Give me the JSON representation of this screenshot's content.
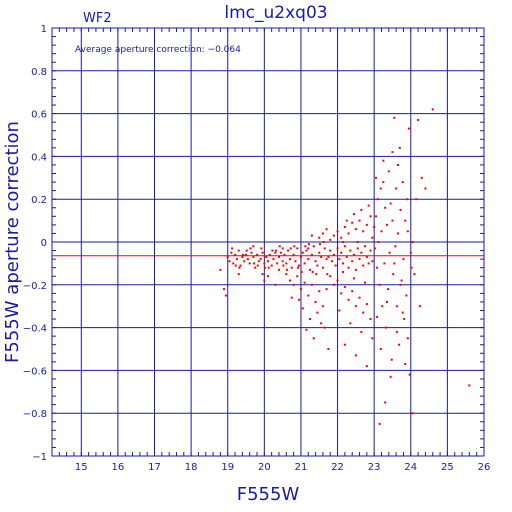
{
  "chart_data": {
    "type": "scatter",
    "title": "lmc_u2xq03",
    "chip_label": "WF2",
    "annotation": "Average aperture correction: −0.064",
    "xlabel": "F555W",
    "ylabel": "F555W aperture correction",
    "xlim": [
      14.2,
      26.0
    ],
    "ylim": [
      -1.0,
      1.0
    ],
    "x_ticks": [
      15,
      16,
      17,
      18,
      19,
      20,
      21,
      22,
      23,
      24,
      25,
      26
    ],
    "x_tick_labels": [
      "15",
      "16",
      "17",
      "18",
      "19",
      "20",
      "21",
      "22",
      "23",
      "24",
      "25",
      "26"
    ],
    "y_ticks": [
      1,
      0.8,
      0.6,
      0.4,
      0.2,
      0,
      -0.2,
      -0.4,
      -0.6,
      -0.8,
      -1
    ],
    "y_tick_labels": [
      "1",
      "0.8",
      "0.6",
      "0.4",
      "0.2",
      "0",
      "−0.2",
      "−0.4",
      "−0.6",
      "−0.8",
      "−1"
    ],
    "grid": true,
    "reference_line": {
      "y": -0.064
    },
    "colors": {
      "axes": "#1a1aa8",
      "points": "#ff0000",
      "reference_line": "#ff0000"
    },
    "points": [
      [
        18.8,
        -0.13
      ],
      [
        18.9,
        -0.22
      ],
      [
        18.95,
        -0.25
      ],
      [
        19.0,
        -0.07
      ],
      [
        19.05,
        -0.09
      ],
      [
        19.1,
        -0.05
      ],
      [
        19.15,
        -0.1
      ],
      [
        19.2,
        -0.06
      ],
      [
        19.25,
        -0.08
      ],
      [
        19.3,
        -0.04
      ],
      [
        19.35,
        -0.11
      ],
      [
        19.4,
        -0.07
      ],
      [
        19.45,
        -0.09
      ],
      [
        19.5,
        -0.06
      ],
      [
        19.55,
        -0.08
      ],
      [
        19.6,
        -0.1
      ],
      [
        19.65,
        -0.05
      ],
      [
        19.7,
        -0.07
      ],
      [
        19.75,
        -0.12
      ],
      [
        19.8,
        -0.06
      ],
      [
        19.85,
        -0.09
      ],
      [
        19.9,
        -0.08
      ],
      [
        19.95,
        -0.05
      ],
      [
        20.0,
        -0.1
      ],
      [
        20.05,
        -0.07
      ],
      [
        20.1,
        -0.09
      ],
      [
        20.15,
        -0.06
      ],
      [
        20.2,
        -0.11
      ],
      [
        20.25,
        -0.08
      ],
      [
        20.3,
        -0.05
      ],
      [
        20.35,
        -0.1
      ],
      [
        19.12,
        -0.03
      ],
      [
        19.32,
        -0.12
      ],
      [
        19.52,
        -0.04
      ],
      [
        19.72,
        -0.1
      ],
      [
        19.92,
        -0.03
      ],
      [
        20.12,
        -0.12
      ],
      [
        20.32,
        -0.04
      ],
      [
        19.22,
        -0.11
      ],
      [
        19.62,
        -0.03
      ],
      [
        20.02,
        -0.12
      ],
      [
        19.42,
        -0.06
      ],
      [
        19.82,
        -0.11
      ],
      [
        20.22,
        -0.04
      ],
      [
        20.0,
        -0.18
      ],
      [
        20.1,
        -0.16
      ],
      [
        20.3,
        -0.2
      ],
      [
        19.95,
        -0.15
      ],
      [
        20.4,
        -0.13
      ],
      [
        19.3,
        -0.15
      ],
      [
        19.7,
        -0.02
      ],
      [
        20.5,
        -0.03
      ],
      [
        20.4,
        -0.07
      ],
      [
        20.45,
        -0.05
      ],
      [
        20.5,
        -0.09
      ],
      [
        20.55,
        -0.06
      ],
      [
        20.6,
        -0.1
      ],
      [
        20.65,
        -0.04
      ],
      [
        20.7,
        -0.08
      ],
      [
        20.75,
        -0.12
      ],
      [
        20.8,
        -0.06
      ],
      [
        20.85,
        -0.09
      ],
      [
        20.9,
        -0.03
      ],
      [
        20.95,
        -0.11
      ],
      [
        21.0,
        -0.07
      ],
      [
        21.05,
        -0.05
      ],
      [
        21.1,
        -0.1
      ],
      [
        21.15,
        -0.04
      ],
      [
        21.2,
        -0.08
      ],
      [
        21.25,
        -0.13
      ],
      [
        21.3,
        -0.06
      ],
      [
        21.35,
        -0.02
      ],
      [
        21.4,
        -0.09
      ],
      [
        21.45,
        -0.11
      ],
      [
        21.5,
        -0.05
      ],
      [
        21.55,
        -0.07
      ],
      [
        21.6,
        -0.12
      ],
      [
        21.65,
        -0.03
      ],
      [
        21.7,
        -0.08
      ],
      [
        20.42,
        -0.02
      ],
      [
        20.62,
        -0.13
      ],
      [
        20.82,
        -0.02
      ],
      [
        21.02,
        -0.14
      ],
      [
        21.22,
        -0.01
      ],
      [
        21.42,
        -0.15
      ],
      [
        21.62,
        0.0
      ],
      [
        20.52,
        -0.11
      ],
      [
        20.72,
        -0.03
      ],
      [
        20.92,
        -0.12
      ],
      [
        21.12,
        -0.02
      ],
      [
        21.32,
        -0.14
      ],
      [
        21.52,
        -0.01
      ],
      [
        21.72,
        -0.15
      ],
      [
        20.6,
        -0.15
      ],
      [
        20.7,
        -0.18
      ],
      [
        20.8,
        -0.2
      ],
      [
        20.9,
        -0.16
      ],
      [
        21.0,
        -0.22
      ],
      [
        21.1,
        -0.19
      ],
      [
        21.2,
        -0.25
      ],
      [
        21.3,
        -0.2
      ],
      [
        21.4,
        -0.28
      ],
      [
        21.5,
        -0.23
      ],
      [
        21.6,
        -0.3
      ],
      [
        21.7,
        -0.22
      ],
      [
        21.05,
        -0.31
      ],
      [
        21.25,
        -0.36
      ],
      [
        21.45,
        -0.33
      ],
      [
        21.65,
        -0.4
      ],
      [
        20.75,
        -0.26
      ],
      [
        21.15,
        -0.41
      ],
      [
        21.35,
        -0.45
      ],
      [
        21.55,
        -0.38
      ],
      [
        21.75,
        -0.5
      ],
      [
        20.95,
        -0.27
      ],
      [
        21.2,
        -0.03
      ],
      [
        21.5,
        0.02
      ],
      [
        21.6,
        0.04
      ],
      [
        21.3,
        0.03
      ],
      [
        21.7,
        0.06
      ],
      [
        21.75,
        -0.07
      ],
      [
        21.8,
        -0.04
      ],
      [
        21.85,
        -0.09
      ],
      [
        21.9,
        -0.06
      ],
      [
        21.95,
        -0.11
      ],
      [
        22.0,
        -0.03
      ],
      [
        22.05,
        -0.08
      ],
      [
        22.1,
        -0.05
      ],
      [
        22.15,
        -0.1
      ],
      [
        22.2,
        -0.02
      ],
      [
        22.25,
        -0.07
      ],
      [
        22.3,
        -0.12
      ],
      [
        22.35,
        -0.04
      ],
      [
        22.4,
        -0.09
      ],
      [
        22.45,
        -0.06
      ],
      [
        22.5,
        -0.13
      ],
      [
        22.55,
        -0.03
      ],
      [
        22.6,
        -0.08
      ],
      [
        22.65,
        -0.05
      ],
      [
        22.7,
        -0.11
      ],
      [
        22.75,
        -0.02
      ],
      [
        22.8,
        -0.07
      ],
      [
        22.85,
        -0.1
      ],
      [
        22.9,
        -0.04
      ],
      [
        22.95,
        -0.09
      ],
      [
        21.8,
        0.01
      ],
      [
        21.9,
        0.03
      ],
      [
        22.0,
        0.05
      ],
      [
        22.1,
        0.02
      ],
      [
        22.2,
        0.07
      ],
      [
        22.3,
        0.04
      ],
      [
        22.4,
        0.09
      ],
      [
        22.5,
        0.06
      ],
      [
        22.6,
        0.1
      ],
      [
        22.7,
        0.05
      ],
      [
        22.8,
        0.08
      ],
      [
        22.9,
        0.12
      ],
      [
        22.25,
        0.1
      ],
      [
        22.45,
        0.13
      ],
      [
        22.65,
        0.15
      ],
      [
        22.85,
        0.17
      ],
      [
        22.95,
        0.02
      ],
      [
        22.55,
        0.0
      ],
      [
        22.15,
        0.0
      ],
      [
        21.8,
        -0.16
      ],
      [
        21.9,
        -0.2
      ],
      [
        22.0,
        -0.18
      ],
      [
        22.1,
        -0.24
      ],
      [
        22.2,
        -0.21
      ],
      [
        22.3,
        -0.27
      ],
      [
        22.4,
        -0.23
      ],
      [
        22.5,
        -0.3
      ],
      [
        22.6,
        -0.26
      ],
      [
        22.7,
        -0.33
      ],
      [
        22.8,
        -0.29
      ],
      [
        22.9,
        -0.36
      ],
      [
        22.05,
        -0.32
      ],
      [
        22.35,
        -0.38
      ],
      [
        22.65,
        -0.42
      ],
      [
        22.95,
        -0.45
      ],
      [
        22.2,
        -0.48
      ],
      [
        22.5,
        -0.53
      ],
      [
        22.8,
        -0.58
      ],
      [
        22.15,
        -0.14
      ],
      [
        22.45,
        -0.17
      ],
      [
        22.75,
        -0.19
      ],
      [
        23.0,
        0.07
      ],
      [
        23.02,
        -0.03
      ],
      [
        23.05,
        0.12
      ],
      [
        23.08,
        -0.12
      ],
      [
        23.1,
        0.2
      ],
      [
        23.12,
        0.0
      ],
      [
        23.15,
        -0.2
      ],
      [
        23.18,
        0.25
      ],
      [
        23.2,
        0.05
      ],
      [
        23.22,
        -0.3
      ],
      [
        23.25,
        0.28
      ],
      [
        23.28,
        -0.1
      ],
      [
        23.3,
        0.16
      ],
      [
        23.32,
        -0.4
      ],
      [
        23.35,
        0.08
      ],
      [
        23.38,
        -0.22
      ],
      [
        23.4,
        0.33
      ],
      [
        23.42,
        -0.05
      ],
      [
        23.45,
        0.18
      ],
      [
        23.48,
        -0.55
      ],
      [
        23.5,
        0.1
      ],
      [
        23.52,
        -0.15
      ],
      [
        23.55,
        0.58
      ],
      [
        23.58,
        -0.02
      ],
      [
        23.6,
        0.25
      ],
      [
        23.62,
        -0.3
      ],
      [
        23.65,
        0.04
      ],
      [
        23.68,
        -0.48
      ],
      [
        23.7,
        0.44
      ],
      [
        23.72,
        0.15
      ],
      [
        23.75,
        -0.18
      ],
      [
        23.78,
        0.28
      ],
      [
        23.8,
        -0.08
      ],
      [
        23.82,
        -0.36
      ],
      [
        23.85,
        0.1
      ],
      [
        23.88,
        -0.25
      ],
      [
        23.9,
        0.2
      ],
      [
        23.92,
        -0.45
      ],
      [
        23.95,
        0.53
      ],
      [
        23.97,
        -0.62
      ],
      [
        24.0,
        -0.05
      ],
      [
        24.02,
        -0.12
      ],
      [
        24.05,
        0.0
      ],
      [
        24.1,
        -0.15
      ],
      [
        24.15,
        0.2
      ],
      [
        24.2,
        0.57
      ],
      [
        24.25,
        -0.3
      ],
      [
        24.3,
        0.3
      ],
      [
        23.15,
        -0.85
      ],
      [
        23.3,
        -0.75
      ],
      [
        23.45,
        -0.63
      ],
      [
        23.85,
        -0.57
      ],
      [
        24.4,
        0.25
      ],
      [
        24.6,
        0.62
      ],
      [
        25.6,
        -0.67
      ],
      [
        23.08,
        -0.35
      ],
      [
        23.35,
        -0.28
      ],
      [
        23.62,
        -0.42
      ],
      [
        23.78,
        -0.33
      ],
      [
        23.25,
        0.38
      ],
      [
        23.5,
        0.42
      ],
      [
        23.05,
        0.3
      ],
      [
        23.65,
        0.36
      ],
      [
        23.92,
        0.05
      ],
      [
        24.05,
        -0.8
      ],
      [
        23.18,
        -0.5
      ],
      [
        23.55,
        -0.1
      ],
      [
        23.72,
        -0.2
      ]
    ]
  }
}
